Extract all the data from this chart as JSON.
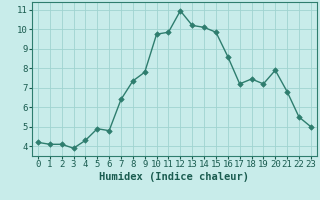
{
  "x": [
    0,
    1,
    2,
    3,
    4,
    5,
    6,
    7,
    8,
    9,
    10,
    11,
    12,
    13,
    14,
    15,
    16,
    17,
    18,
    19,
    20,
    21,
    22,
    23
  ],
  "y": [
    4.2,
    4.1,
    4.1,
    3.9,
    4.3,
    4.9,
    4.8,
    6.4,
    7.35,
    7.8,
    9.75,
    9.85,
    10.95,
    10.2,
    10.1,
    9.85,
    8.6,
    7.2,
    7.45,
    7.2,
    7.9,
    6.8,
    5.5,
    5.0
  ],
  "line_color": "#2e7d6e",
  "marker": "D",
  "markersize": 2.8,
  "linewidth": 1.0,
  "background_color": "#c8ecea",
  "grid_color": "#a0d4d0",
  "xlabel": "Humidex (Indice chaleur)",
  "xlabel_fontsize": 7.5,
  "tick_fontsize": 6.5,
  "xlim": [
    -0.5,
    23.5
  ],
  "ylim": [
    3.5,
    11.4
  ],
  "yticks": [
    4,
    5,
    6,
    7,
    8,
    9,
    10,
    11
  ],
  "xticks": [
    0,
    1,
    2,
    3,
    4,
    5,
    6,
    7,
    8,
    9,
    10,
    11,
    12,
    13,
    14,
    15,
    16,
    17,
    18,
    19,
    20,
    21,
    22,
    23
  ],
  "spine_color": "#2e7d6e",
  "text_color": "#1a5c50"
}
